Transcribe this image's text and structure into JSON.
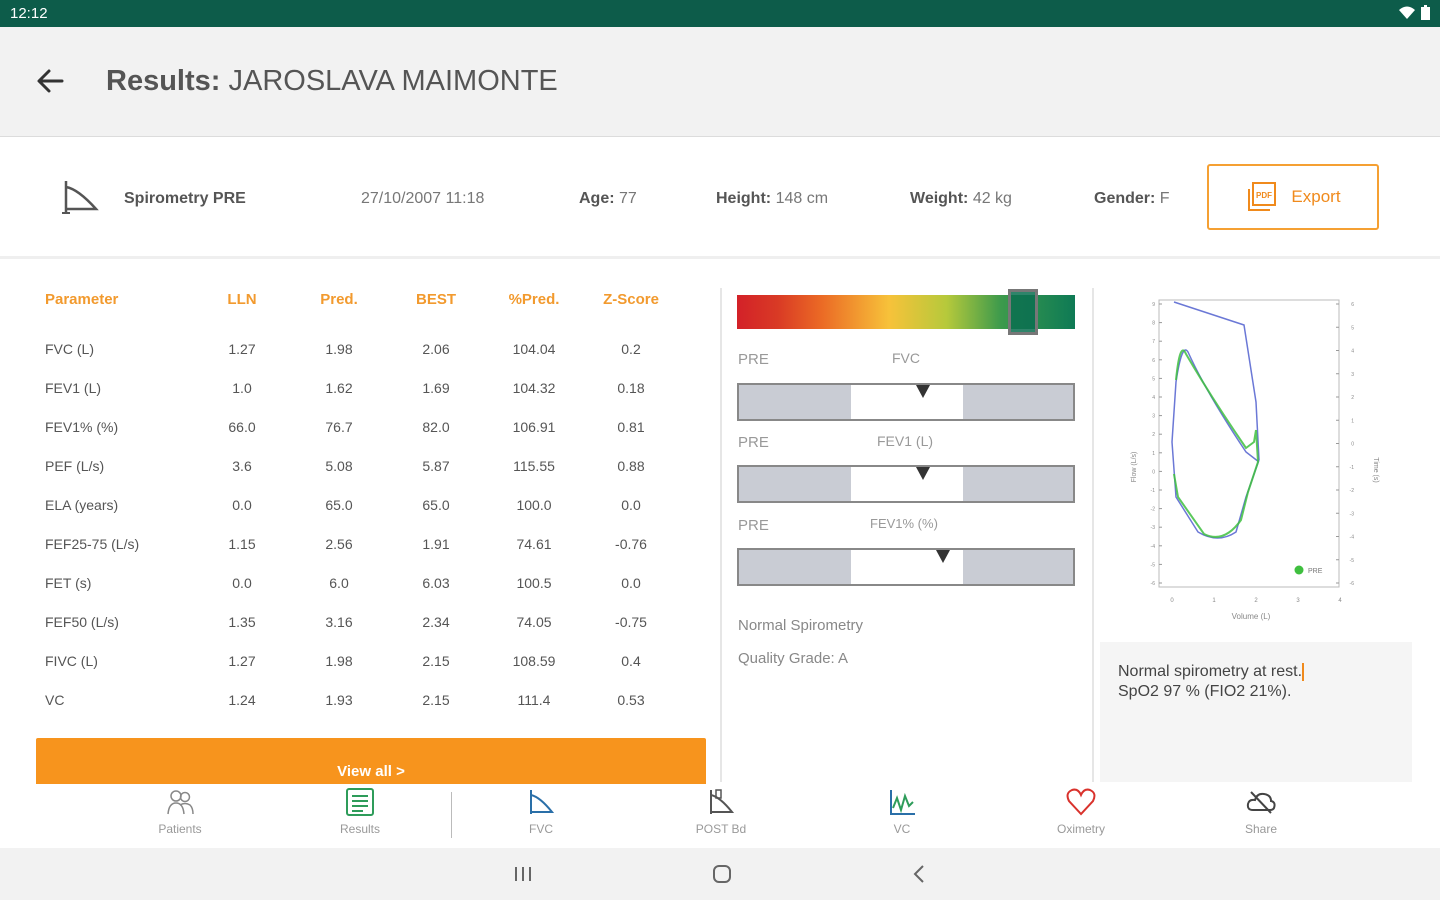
{
  "status_bar": {
    "time": "12:12",
    "icons": [
      "wifi-icon",
      "battery-icon"
    ]
  },
  "header": {
    "title_prefix": "Results:",
    "patient_name": "JAROSLAVA MAIMONTE"
  },
  "info": {
    "test_type": "Spirometry PRE",
    "datetime": "27/10/2007 11:18",
    "age_label": "Age:",
    "age_value": "77",
    "height_label": "Height:",
    "height_value": "148 cm",
    "weight_label": "Weight:",
    "weight_value": "42 kg",
    "gender_label": "Gender:",
    "gender_value": "F",
    "export_label": "Export"
  },
  "table": {
    "headers": [
      "Parameter",
      "LLN",
      "Pred.",
      "BEST",
      "%Pred.",
      "Z-Score"
    ],
    "rows": [
      [
        "FVC (L)",
        "1.27",
        "1.98",
        "2.06",
        "104.04",
        "0.2"
      ],
      [
        "FEV1 (L)",
        "1.0",
        "1.62",
        "1.69",
        "104.32",
        "0.18"
      ],
      [
        "FEV1% (%)",
        "66.0",
        "76.7",
        "82.0",
        "106.91",
        "0.81"
      ],
      [
        "PEF (L/s)",
        "3.6",
        "5.08",
        "5.87",
        "115.55",
        "0.88"
      ],
      [
        "ELA (years)",
        "0.0",
        "65.0",
        "65.0",
        "100.0",
        "0.0"
      ],
      [
        "FEF25-75 (L/s)",
        "1.15",
        "2.56",
        "1.91",
        "74.61",
        "-0.76"
      ],
      [
        "FET (s)",
        "0.0",
        "6.0",
        "6.03",
        "100.5",
        "0.0"
      ],
      [
        "FEF50 (L/s)",
        "1.35",
        "3.16",
        "2.34",
        "74.05",
        "-0.75"
      ],
      [
        "FIVC (L)",
        "1.27",
        "1.98",
        "2.15",
        "108.59",
        "0.4"
      ],
      [
        "VC",
        "1.24",
        "1.93",
        "2.15",
        "111.4",
        "0.53"
      ]
    ],
    "view_all_label": "View all >"
  },
  "gauges": {
    "overall_level": 0.88,
    "items": [
      {
        "pre": "PRE",
        "param": "FVC",
        "level": 0.55
      },
      {
        "pre": "PRE",
        "param": "FEV1 (L)",
        "level": 0.55
      },
      {
        "pre": "PRE",
        "param": "FEV1% (%)",
        "level": 0.61
      }
    ],
    "interpretation": "Normal Spirometry",
    "quality": "Quality Grade: A"
  },
  "plot": {
    "ylabel": "Flow (L/s)",
    "y2label": "Time (s)",
    "xlabel": "Volume (L)",
    "legend": "PRE",
    "y_ticks": [
      "9",
      "8",
      "7",
      "6",
      "5",
      "4",
      "3",
      "2",
      "1",
      "0",
      "-1",
      "-2",
      "-3",
      "-4",
      "-5",
      "-6"
    ],
    "x_ticks": [
      "0",
      "1",
      "2",
      "3",
      "4"
    ],
    "y2_ticks": [
      "6",
      "5",
      "4",
      "3",
      "2",
      "1",
      "0",
      "-1",
      "-2",
      "-3",
      "-4",
      "-5",
      "-6"
    ],
    "series_colors": {
      "pre": "#3fbf3f",
      "pred": "#6b78d6"
    }
  },
  "notes": {
    "line1": "Normal spirometry at rest.",
    "line2": "SpO2 97 % (FIO2 21%)."
  },
  "bottom_nav": [
    {
      "label": "Patients",
      "icon": "patients-icon"
    },
    {
      "label": "Results",
      "icon": "results-icon"
    },
    {
      "label": "FVC",
      "icon": "fvc-icon"
    },
    {
      "label": "POST Bd",
      "icon": "post-bd-icon"
    },
    {
      "label": "VC",
      "icon": "vc-icon"
    },
    {
      "label": "Oximetry",
      "icon": "oximetry-icon"
    },
    {
      "label": "Share",
      "icon": "share-icon"
    }
  ]
}
